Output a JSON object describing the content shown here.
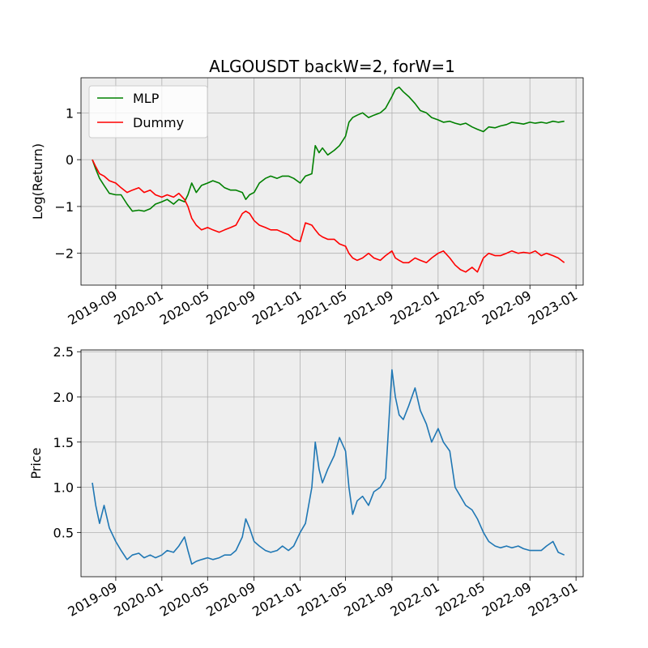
{
  "chart_data": [
    {
      "type": "line",
      "title": "ALGOUSDT backW=2, forW=1",
      "xlabel": "",
      "ylabel": "Log(Return)",
      "xlim": [
        "2019-06-01",
        "2023-01-20"
      ],
      "ylim": [
        -2.68,
        1.75
      ],
      "grid": true,
      "legend": "upper left",
      "x_ticks": [
        "2019-09",
        "2020-01",
        "2020-05",
        "2020-09",
        "2021-01",
        "2021-05",
        "2021-09",
        "2022-01",
        "2022-05",
        "2022-09",
        "2023-01"
      ],
      "y_ticks": [
        1,
        0,
        -1,
        -2
      ],
      "y_tick_labels": [
        "1",
        "0",
        "−1",
        "−2"
      ],
      "series": [
        {
          "name": "MLP",
          "color": "#008000",
          "x": [
            "2019-07-01",
            "2019-07-10",
            "2019-07-20",
            "2019-08-01",
            "2019-08-15",
            "2019-09-01",
            "2019-09-15",
            "2019-10-01",
            "2019-10-15",
            "2019-11-01",
            "2019-11-15",
            "2019-12-01",
            "2019-12-15",
            "2020-01-01",
            "2020-01-15",
            "2020-02-01",
            "2020-02-15",
            "2020-03-01",
            "2020-03-10",
            "2020-03-20",
            "2020-04-01",
            "2020-04-15",
            "2020-05-01",
            "2020-05-15",
            "2020-06-01",
            "2020-06-15",
            "2020-07-01",
            "2020-07-15",
            "2020-08-01",
            "2020-08-10",
            "2020-08-20",
            "2020-09-01",
            "2020-09-15",
            "2020-10-01",
            "2020-10-15",
            "2020-11-01",
            "2020-11-15",
            "2020-12-01",
            "2020-12-15",
            "2021-01-01",
            "2021-01-15",
            "2021-02-01",
            "2021-02-10",
            "2021-02-20",
            "2021-03-01",
            "2021-03-15",
            "2021-04-01",
            "2021-04-15",
            "2021-05-01",
            "2021-05-10",
            "2021-05-20",
            "2021-06-01",
            "2021-06-15",
            "2021-07-01",
            "2021-07-15",
            "2021-08-01",
            "2021-08-15",
            "2021-09-01",
            "2021-09-10",
            "2021-09-20",
            "2021-10-01",
            "2021-10-15",
            "2021-11-01",
            "2021-11-15",
            "2021-12-01",
            "2021-12-15",
            "2022-01-01",
            "2022-01-15",
            "2022-02-01",
            "2022-02-15",
            "2022-03-01",
            "2022-03-15",
            "2022-04-01",
            "2022-04-15",
            "2022-05-01",
            "2022-05-15",
            "2022-06-01",
            "2022-06-15",
            "2022-07-01",
            "2022-07-15",
            "2022-08-01",
            "2022-08-15",
            "2022-09-01",
            "2022-09-15",
            "2022-10-01",
            "2022-10-15",
            "2022-11-01",
            "2022-11-15",
            "2022-12-01"
          ],
          "values": [
            0,
            -0.2,
            -0.4,
            -0.55,
            -0.72,
            -0.75,
            -0.75,
            -0.95,
            -1.1,
            -1.08,
            -1.1,
            -1.05,
            -0.95,
            -0.9,
            -0.85,
            -0.95,
            -0.85,
            -0.9,
            -0.75,
            -0.5,
            -0.7,
            -0.55,
            -0.5,
            -0.45,
            -0.5,
            -0.6,
            -0.65,
            -0.65,
            -0.7,
            -0.85,
            -0.75,
            -0.7,
            -0.5,
            -0.4,
            -0.35,
            -0.4,
            -0.35,
            -0.35,
            -0.4,
            -0.5,
            -0.35,
            -0.3,
            0.3,
            0.15,
            0.25,
            0.1,
            0.2,
            0.3,
            0.5,
            0.8,
            0.9,
            0.95,
            1.0,
            0.9,
            0.95,
            1.0,
            1.1,
            1.35,
            1.5,
            1.55,
            1.45,
            1.35,
            1.2,
            1.05,
            1.0,
            0.9,
            0.85,
            0.8,
            0.82,
            0.78,
            0.75,
            0.78,
            0.7,
            0.65,
            0.6,
            0.7,
            0.68,
            0.72,
            0.75,
            0.8,
            0.78,
            0.76,
            0.8,
            0.78,
            0.8,
            0.78,
            0.82,
            0.8,
            0.82
          ]
        },
        {
          "name": "Dummy",
          "color": "#ff0000",
          "x": [
            "2019-07-01",
            "2019-07-10",
            "2019-07-20",
            "2019-08-01",
            "2019-08-15",
            "2019-09-01",
            "2019-09-15",
            "2019-10-01",
            "2019-10-15",
            "2019-11-01",
            "2019-11-15",
            "2019-12-01",
            "2019-12-15",
            "2020-01-01",
            "2020-01-15",
            "2020-02-01",
            "2020-02-15",
            "2020-03-01",
            "2020-03-10",
            "2020-03-20",
            "2020-04-01",
            "2020-04-15",
            "2020-05-01",
            "2020-05-15",
            "2020-06-01",
            "2020-06-15",
            "2020-07-01",
            "2020-07-15",
            "2020-08-01",
            "2020-08-10",
            "2020-08-20",
            "2020-09-01",
            "2020-09-15",
            "2020-10-01",
            "2020-10-15",
            "2020-11-01",
            "2020-11-15",
            "2020-12-01",
            "2020-12-15",
            "2021-01-01",
            "2021-01-15",
            "2021-02-01",
            "2021-02-10",
            "2021-02-20",
            "2021-03-01",
            "2021-03-15",
            "2021-04-01",
            "2021-04-15",
            "2021-05-01",
            "2021-05-10",
            "2021-05-20",
            "2021-06-01",
            "2021-06-15",
            "2021-07-01",
            "2021-07-15",
            "2021-08-01",
            "2021-08-15",
            "2021-09-01",
            "2021-09-10",
            "2021-09-20",
            "2021-10-01",
            "2021-10-15",
            "2021-11-01",
            "2021-11-15",
            "2021-12-01",
            "2021-12-15",
            "2022-01-01",
            "2022-01-15",
            "2022-02-01",
            "2022-02-15",
            "2022-03-01",
            "2022-03-15",
            "2022-04-01",
            "2022-04-15",
            "2022-05-01",
            "2022-05-15",
            "2022-06-01",
            "2022-06-15",
            "2022-07-01",
            "2022-07-15",
            "2022-08-01",
            "2022-08-15",
            "2022-09-01",
            "2022-09-15",
            "2022-10-01",
            "2022-10-15",
            "2022-11-01",
            "2022-11-15",
            "2022-12-01"
          ],
          "values": [
            0,
            -0.15,
            -0.3,
            -0.35,
            -0.45,
            -0.5,
            -0.6,
            -0.7,
            -0.65,
            -0.6,
            -0.7,
            -0.65,
            -0.75,
            -0.8,
            -0.75,
            -0.8,
            -0.72,
            -0.85,
            -1.0,
            -1.25,
            -1.4,
            -1.5,
            -1.45,
            -1.5,
            -1.55,
            -1.5,
            -1.45,
            -1.4,
            -1.15,
            -1.1,
            -1.15,
            -1.3,
            -1.4,
            -1.45,
            -1.5,
            -1.5,
            -1.55,
            -1.6,
            -1.7,
            -1.75,
            -1.35,
            -1.4,
            -1.5,
            -1.6,
            -1.65,
            -1.7,
            -1.7,
            -1.8,
            -1.85,
            -2.0,
            -2.1,
            -2.15,
            -2.1,
            -2.0,
            -2.1,
            -2.15,
            -2.05,
            -1.95,
            -2.1,
            -2.15,
            -2.2,
            -2.2,
            -2.1,
            -2.15,
            -2.2,
            -2.1,
            -2.0,
            -1.95,
            -2.1,
            -2.25,
            -2.35,
            -2.4,
            -2.3,
            -2.4,
            -2.1,
            -2.0,
            -2.05,
            -2.05,
            -2.0,
            -1.95,
            -2.0,
            -1.98,
            -2.0,
            -1.95,
            -2.05,
            -2.0,
            -2.05,
            -2.1,
            -2.2
          ]
        }
      ]
    },
    {
      "type": "line",
      "title": "",
      "xlabel": "",
      "ylabel": "Price",
      "xlim": [
        "2019-06-01",
        "2023-01-20"
      ],
      "ylim": [
        0.01,
        2.52
      ],
      "grid": true,
      "x_ticks": [
        "2019-09",
        "2020-01",
        "2020-05",
        "2020-09",
        "2021-01",
        "2021-05",
        "2021-09",
        "2022-01",
        "2022-05",
        "2022-09",
        "2023-01"
      ],
      "y_ticks": [
        2.5,
        2.0,
        1.5,
        1.0,
        0.5
      ],
      "y_tick_labels": [
        "2.5",
        "2.0",
        "1.5",
        "1.0",
        "0.5"
      ],
      "series": [
        {
          "color": "#1f77b4",
          "x": [
            "2019-07-01",
            "2019-07-10",
            "2019-07-20",
            "2019-08-01",
            "2019-08-15",
            "2019-09-01",
            "2019-09-15",
            "2019-10-01",
            "2019-10-15",
            "2019-11-01",
            "2019-11-15",
            "2019-12-01",
            "2019-12-15",
            "2020-01-01",
            "2020-01-15",
            "2020-02-01",
            "2020-02-15",
            "2020-03-01",
            "2020-03-10",
            "2020-03-20",
            "2020-04-01",
            "2020-04-15",
            "2020-05-01",
            "2020-05-15",
            "2020-06-01",
            "2020-06-15",
            "2020-07-01",
            "2020-07-15",
            "2020-08-01",
            "2020-08-10",
            "2020-08-20",
            "2020-09-01",
            "2020-09-15",
            "2020-10-01",
            "2020-10-15",
            "2020-11-01",
            "2020-11-15",
            "2020-12-01",
            "2020-12-15",
            "2021-01-01",
            "2021-01-15",
            "2021-02-01",
            "2021-02-10",
            "2021-02-20",
            "2021-03-01",
            "2021-03-15",
            "2021-04-01",
            "2021-04-15",
            "2021-05-01",
            "2021-05-10",
            "2021-05-20",
            "2021-06-01",
            "2021-06-15",
            "2021-07-01",
            "2021-07-15",
            "2021-08-01",
            "2021-08-15",
            "2021-09-01",
            "2021-09-10",
            "2021-09-20",
            "2021-10-01",
            "2021-10-15",
            "2021-11-01",
            "2021-11-15",
            "2021-12-01",
            "2021-12-15",
            "2022-01-01",
            "2022-01-15",
            "2022-02-01",
            "2022-02-15",
            "2022-03-01",
            "2022-03-15",
            "2022-04-01",
            "2022-04-15",
            "2022-05-01",
            "2022-05-15",
            "2022-06-01",
            "2022-06-15",
            "2022-07-01",
            "2022-07-15",
            "2022-08-01",
            "2022-08-15",
            "2022-09-01",
            "2022-09-15",
            "2022-10-01",
            "2022-10-15",
            "2022-11-01",
            "2022-11-15",
            "2022-12-01"
          ],
          "values": [
            1.05,
            0.8,
            0.6,
            0.8,
            0.55,
            0.4,
            0.3,
            0.2,
            0.25,
            0.27,
            0.22,
            0.25,
            0.22,
            0.25,
            0.3,
            0.28,
            0.35,
            0.45,
            0.3,
            0.15,
            0.18,
            0.2,
            0.22,
            0.2,
            0.22,
            0.25,
            0.25,
            0.3,
            0.45,
            0.65,
            0.55,
            0.4,
            0.35,
            0.3,
            0.28,
            0.3,
            0.35,
            0.3,
            0.35,
            0.5,
            0.6,
            1.0,
            1.5,
            1.2,
            1.05,
            1.2,
            1.35,
            1.55,
            1.4,
            1.0,
            0.7,
            0.85,
            0.9,
            0.8,
            0.95,
            1.0,
            1.1,
            2.3,
            2.0,
            1.8,
            1.75,
            1.9,
            2.1,
            1.85,
            1.7,
            1.5,
            1.65,
            1.5,
            1.4,
            1.0,
            0.9,
            0.8,
            0.75,
            0.65,
            0.5,
            0.4,
            0.35,
            0.33,
            0.35,
            0.33,
            0.35,
            0.32,
            0.3,
            0.3,
            0.3,
            0.35,
            0.4,
            0.28,
            0.25
          ]
        }
      ]
    }
  ]
}
